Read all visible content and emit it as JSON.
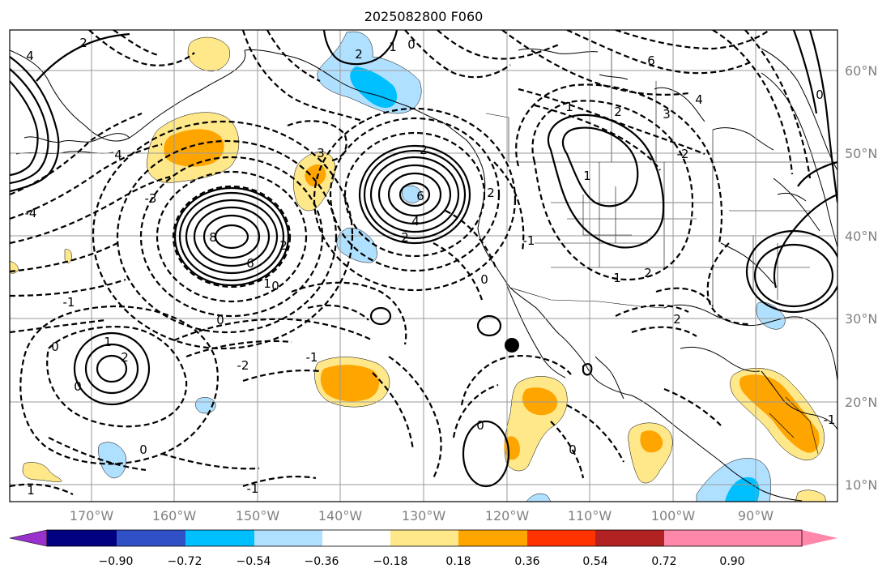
{
  "title": "2025082800 F060",
  "lon_labels": [
    "170°W",
    "160°W",
    "150°W",
    "140°W",
    "130°W",
    "120°W",
    "110°W",
    "100°W",
    "90°W"
  ],
  "lat_labels": [
    "60°N",
    "50°N",
    "40°N",
    "30°N",
    "20°N",
    "10°N"
  ],
  "colorbar": {
    "tick_labels": [
      "−0.90",
      "−0.72",
      "−0.54",
      "−0.36",
      "−0.18",
      "0.18",
      "0.36",
      "0.54",
      "0.72",
      "0.90"
    ],
    "colors": [
      "#9932cc",
      "#000080",
      "#3050c8",
      "#00bfff",
      "#b0e0ff",
      "#ffffff",
      "#ffe88a",
      "#ffa500",
      "#ff3300",
      "#b22222",
      "#ff88aa"
    ]
  },
  "contour_labels": [
    "2",
    "1",
    "0",
    "4",
    "6",
    "2",
    "1",
    "3",
    "4",
    "2",
    "0",
    "-2",
    "3",
    "2",
    "4",
    "8",
    "6",
    "2",
    "1",
    "0",
    "6",
    "2",
    "4",
    "2",
    "0",
    "1",
    "-1",
    "0",
    "-1",
    "-2",
    "-3",
    "-4",
    "0",
    "2",
    "1",
    "0",
    "2",
    "-1",
    "1",
    "0",
    "-1",
    "0",
    "2",
    "-1",
    "0",
    "1"
  ],
  "marker": "station-dot"
}
